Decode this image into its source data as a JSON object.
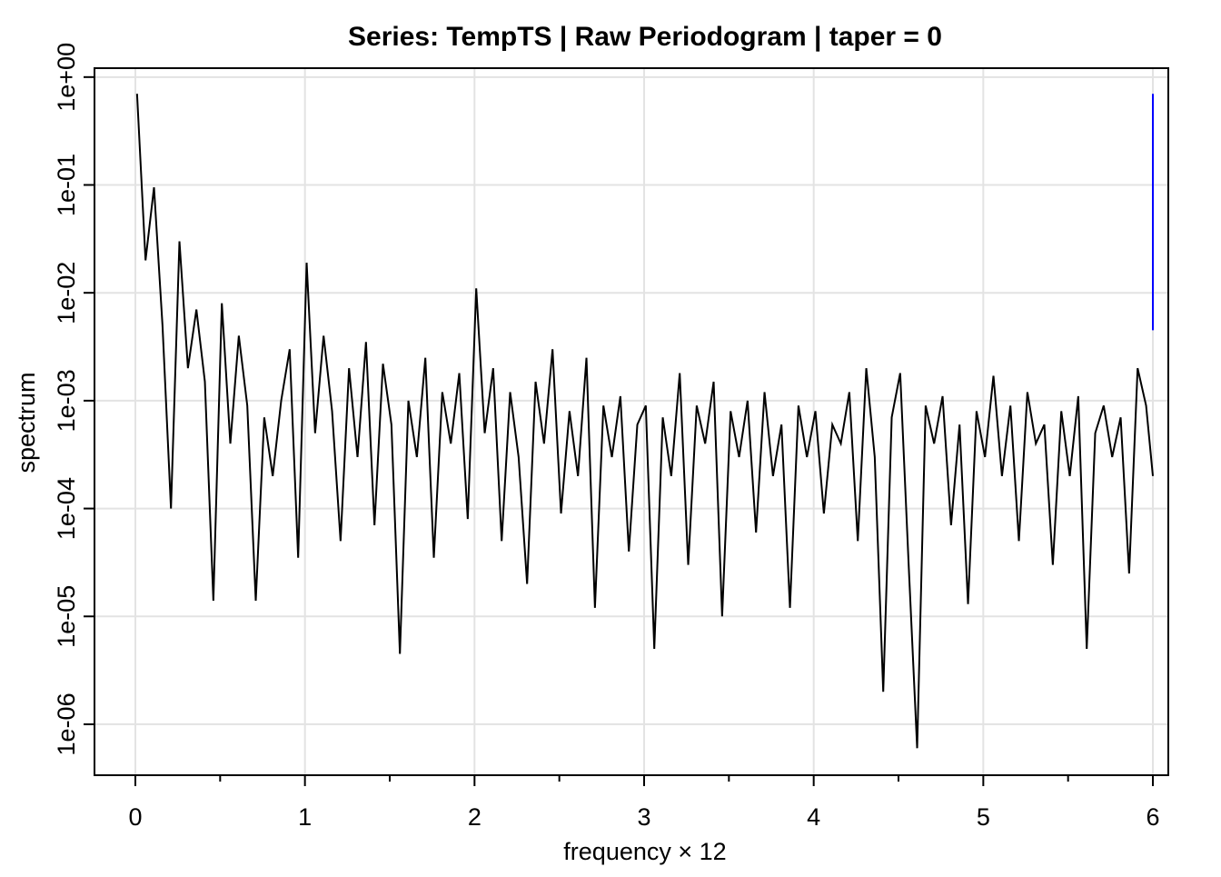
{
  "chart_data": {
    "type": "line",
    "title": "Series: TempTS  |  Raw Periodogram  |  taper = 0",
    "xlabel": "frequency × 12",
    "ylabel": "spectrum",
    "ylog": true,
    "grid": true,
    "xlim": [
      -0.241,
      6.091
    ],
    "ylim": [
      3.37e-07,
      1.21
    ],
    "xticks": [
      0,
      1,
      2,
      3,
      4,
      5,
      6
    ],
    "xminorticks": [
      0.5,
      1.5,
      2.5,
      3.5,
      4.5,
      5.5
    ],
    "yticks": [
      {
        "value": 1,
        "label": "1e+00"
      },
      {
        "value": 0.1,
        "label": "1e-01"
      },
      {
        "value": 0.01,
        "label": "1e-02"
      },
      {
        "value": 0.001,
        "label": "1e-03"
      },
      {
        "value": 0.0001,
        "label": "1e-04"
      },
      {
        "value": 1e-05,
        "label": "1e-05"
      },
      {
        "value": 1e-06,
        "label": "1e-06"
      }
    ],
    "x": [
      0.01,
      0.06,
      0.11,
      0.16,
      0.21,
      0.26,
      0.31,
      0.36,
      0.41,
      0.46,
      0.51,
      0.56,
      0.61,
      0.66,
      0.71,
      0.76,
      0.81,
      0.86,
      0.91,
      0.96,
      1.01,
      1.06,
      1.11,
      1.16,
      1.21,
      1.26,
      1.31,
      1.36,
      1.41,
      1.46,
      1.51,
      1.56,
      1.61,
      1.66,
      1.71,
      1.76,
      1.81,
      1.86,
      1.91,
      1.96,
      2.01,
      2.06,
      2.11,
      2.16,
      2.21,
      2.26,
      2.31,
      2.36,
      2.41,
      2.46,
      2.51,
      2.56,
      2.61,
      2.66,
      2.71,
      2.76,
      2.81,
      2.86,
      2.91,
      2.96,
      3.01,
      3.06,
      3.11,
      3.16,
      3.21,
      3.26,
      3.31,
      3.36,
      3.41,
      3.46,
      3.51,
      3.56,
      3.61,
      3.66,
      3.71,
      3.76,
      3.81,
      3.86,
      3.91,
      3.96,
      4.01,
      4.06,
      4.11,
      4.16,
      4.21,
      4.26,
      4.31,
      4.36,
      4.41,
      4.46,
      4.51,
      4.56,
      4.61,
      4.66,
      4.71,
      4.76,
      4.81,
      4.86,
      4.91,
      4.96,
      5.01,
      5.06,
      5.11,
      5.16,
      5.21,
      5.26,
      5.31,
      5.36,
      5.41,
      5.46,
      5.51,
      5.56,
      5.61,
      5.66,
      5.71,
      5.76,
      5.81,
      5.86,
      5.91,
      5.96,
      6.0
    ],
    "series": [
      {
        "color": "#000000",
        "values": [
          0.7,
          0.02,
          0.095,
          0.005,
          0.0001,
          0.03,
          0.002,
          0.007,
          0.0015,
          1.4e-05,
          0.008,
          0.0004,
          0.004,
          0.0009,
          1.4e-05,
          0.0007,
          0.0002,
          0.001,
          0.003,
          3.5e-05,
          0.019,
          0.0005,
          0.004,
          0.0008,
          5e-05,
          0.002,
          0.0003,
          0.0035,
          7e-05,
          0.0022,
          0.0006,
          4.5e-06,
          0.001,
          0.0003,
          0.0025,
          3.5e-05,
          0.0012,
          0.0004,
          0.0018,
          8e-05,
          0.011,
          0.0005,
          0.002,
          5e-05,
          0.0012,
          0.0003,
          2e-05,
          0.0015,
          0.0004,
          0.003,
          9e-05,
          0.0008,
          0.0002,
          0.0025,
          1.2e-05,
          0.0009,
          0.0003,
          0.0011,
          4e-05,
          0.0006,
          0.0009,
          5e-06,
          0.0007,
          0.0002,
          0.0018,
          3e-05,
          0.0009,
          0.0004,
          0.0015,
          1e-05,
          0.0008,
          0.0003,
          0.001,
          6e-05,
          0.0012,
          0.0002,
          0.0006,
          1.2e-05,
          0.0009,
          0.0003,
          0.0008,
          9e-05,
          0.0006,
          0.0004,
          0.0012,
          5e-05,
          0.002,
          0.0003,
          2e-06,
          0.0007,
          0.0018,
          3e-05,
          6e-07,
          0.0009,
          0.0004,
          0.0011,
          7e-05,
          0.0006,
          1.3e-05,
          0.0008,
          0.0003,
          0.0017,
          0.0002,
          0.0009,
          5e-05,
          0.0012,
          0.0004,
          0.0006,
          3e-05,
          0.0008,
          0.0002,
          0.0011,
          5e-06,
          0.0005,
          0.0009,
          0.0003,
          0.0007,
          2.5e-05,
          0.002,
          0.0009,
          0.0002
        ]
      }
    ],
    "ci_bar": {
      "x": 6,
      "low": 0.0045,
      "high": 0.7,
      "color": "#0000ff"
    }
  }
}
